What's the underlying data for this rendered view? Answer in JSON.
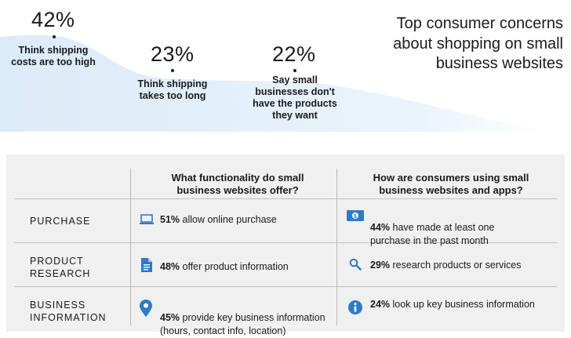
{
  "title": "Top consumer concerns\nabout shopping on small\nbusiness websites",
  "chart_data": {
    "type": "area",
    "title": "Top consumer concerns about shopping on small business websites",
    "categories": [
      "Think shipping costs are too high",
      "Think shipping takes too long",
      "Say small businesses don't have the products they want"
    ],
    "values": [
      42,
      23,
      22
    ],
    "value_labels": [
      "42%",
      "23%",
      "22%"
    ],
    "fill_color": "#e6f1fb"
  },
  "stats": [
    {
      "value": "42%",
      "label": "Think shipping\ncosts are too high"
    },
    {
      "value": "23%",
      "label": "Think shipping\ntakes too long"
    },
    {
      "value": "22%",
      "label": "Say small\nbusinesses don't\nhave the products\nthey want"
    }
  ],
  "table": {
    "columns": [
      "What functionality do small\nbusiness websites offer?",
      "How are consumers using small\nbusiness websites and apps?"
    ],
    "rows": [
      {
        "label": "PURCHASE",
        "offer_icon": "laptop-icon",
        "offer_pct": "51%",
        "offer_text": " allow online purchase",
        "use_icon": "dollar-bill-icon",
        "use_pct": "44%",
        "use_text": " have made at least one\npurchase in the past month"
      },
      {
        "label": "PRODUCT\nRESEARCH",
        "offer_icon": "document-icon",
        "offer_pct": "48%",
        "offer_text": " offer product information",
        "use_icon": "magnifier-icon",
        "use_pct": "29%",
        "use_text": " research products or services"
      },
      {
        "label": "BUSINESS\nINFORMATION",
        "offer_icon": "location-pin-icon",
        "offer_pct": "45%",
        "offer_text": " provide key business information\n(hours, contact info, location)",
        "use_icon": "info-icon",
        "use_pct": "24%",
        "use_text": " look up key business information"
      }
    ],
    "icon_color": "#2e7cc6",
    "panel_color": "#f0f0f0"
  }
}
